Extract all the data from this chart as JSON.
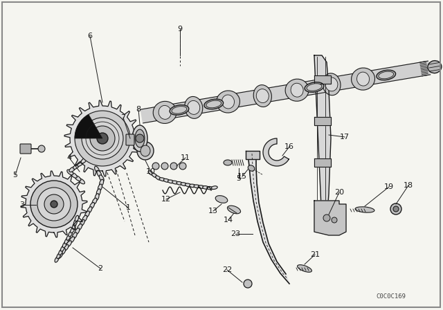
{
  "bg_color": "#f5f5f0",
  "line_color": "#1a1a1a",
  "fig_width": 6.4,
  "fig_height": 4.48,
  "dpi": 100,
  "watermark": "C0C0C169",
  "border_color": "#888888"
}
